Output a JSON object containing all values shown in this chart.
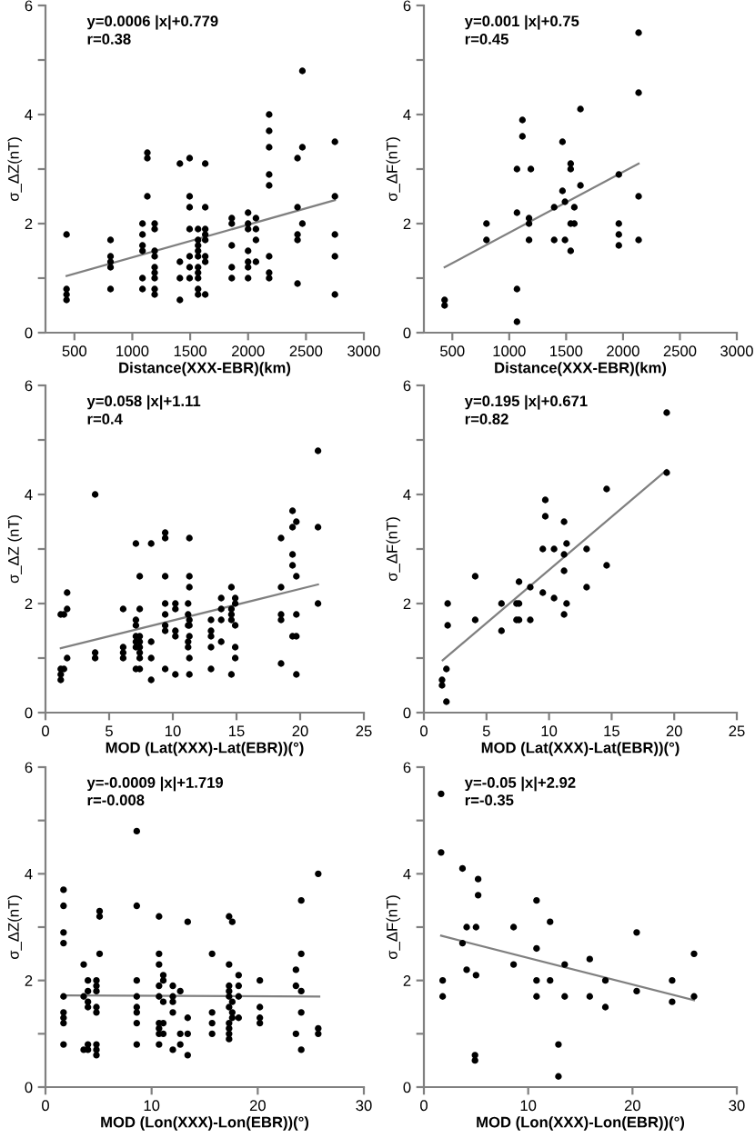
{
  "chart_data": [
    {
      "type": "scatter",
      "xlabel": "Distance(XXX-EBR)(km)",
      "ylabel": "σ_ΔZ(nT)",
      "annotations": [
        "y=0.0006 |x|+0.779",
        "r=0.38"
      ],
      "xlim": [
        250,
        3000
      ],
      "xticks": [
        500,
        1000,
        1500,
        2000,
        2500,
        3000
      ],
      "ylim": [
        0,
        6
      ],
      "yticks": [
        0,
        {
          "value": 1,
          "label": null
        },
        2,
        {
          "value": 3,
          "label": null
        },
        4,
        {
          "value": 5,
          "label": null
        },
        6
      ],
      "series": [
        {
          "marker": "circle",
          "color": "#000000",
          "x": [
            432,
            432,
            432,
            432,
            812,
            812,
            812,
            812,
            812,
            1088,
            1088,
            1088,
            1088,
            1088,
            1088,
            1130,
            1130,
            1130,
            1193,
            1193,
            1193,
            1193,
            1193,
            1193,
            1193,
            1193,
            1193,
            1411,
            1411,
            1411,
            1411,
            1495,
            1495,
            1495,
            1495,
            1495,
            1495,
            1495,
            1568,
            1568,
            1568,
            1568,
            1568,
            1568,
            1568,
            1568,
            1568,
            1568,
            1630,
            1630,
            1630,
            1630,
            1630,
            1630,
            1630,
            1630,
            1859,
            1859,
            1859,
            1859,
            1859,
            2000,
            2000,
            2000,
            2000,
            2000,
            2000,
            2000,
            2068,
            2068,
            2068,
            2068,
            2182,
            2182,
            2182,
            2182,
            2182,
            2182,
            2182,
            2182,
            2427,
            2427,
            2427,
            2427,
            2427,
            2469,
            2469,
            2469,
            2750,
            2750,
            2750,
            2750,
            2750
          ],
          "values": [
            1.8,
            0.8,
            0.7,
            0.6,
            1.7,
            1.4,
            1.3,
            1.2,
            0.8,
            2.0,
            1.8,
            1.6,
            1.5,
            1.0,
            0.8,
            3.3,
            3.2,
            2.5,
            2.0,
            1.9,
            1.5,
            1.4,
            1.2,
            1.1,
            1.0,
            0.8,
            0.7,
            3.1,
            1.3,
            1.0,
            0.6,
            3.2,
            2.5,
            2.3,
            1.9,
            1.4,
            1.2,
            1.0,
            1.9,
            1.7,
            1.6,
            1.5,
            1.4,
            1.2,
            1.1,
            1.0,
            0.8,
            0.7,
            3.1,
            2.3,
            1.9,
            1.8,
            1.7,
            1.4,
            1.3,
            0.7,
            2.1,
            2.0,
            1.6,
            1.2,
            1.0,
            2.2,
            2.0,
            1.9,
            1.5,
            1.3,
            1.2,
            1.0,
            2.1,
            1.9,
            1.7,
            1.3,
            4.0,
            3.7,
            3.4,
            2.9,
            2.7,
            1.4,
            1.1,
            1.0,
            3.2,
            2.3,
            1.8,
            1.7,
            0.9,
            4.8,
            3.4,
            2.0,
            3.5,
            2.5,
            1.8,
            1.4,
            0.7
          ]
        },
        {
          "type": "line",
          "color": "#808080",
          "x": [
            432,
            2750
          ],
          "values": [
            1.04,
            2.43
          ]
        }
      ]
    },
    {
      "type": "scatter",
      "xlabel": "Distance(XXX-EBR)(km)",
      "ylabel": "σ_ΔF(nT)",
      "annotations": [
        "y=0.001 |x|+0.75",
        "r=0.45"
      ],
      "xlim": [
        250,
        3000
      ],
      "xticks": [
        500,
        1000,
        1500,
        2000,
        2500,
        3000
      ],
      "ylim": [
        0,
        6
      ],
      "yticks": [
        0,
        {
          "value": 1,
          "label": null
        },
        2,
        {
          "value": 3,
          "label": null
        },
        4,
        {
          "value": 5,
          "label": null
        },
        6
      ],
      "series": [
        {
          "marker": "circle",
          "color": "#000000",
          "x": [
            432,
            432,
            800,
            800,
            1068,
            1068,
            1068,
            1068,
            1116,
            1116,
            1174,
            1174,
            1174,
            1190,
            1395,
            1395,
            1468,
            1468,
            1490,
            1490,
            1540,
            1540,
            1540,
            1540,
            1572,
            1572,
            1626,
            1626,
            1963,
            1963,
            1963,
            1963,
            2137,
            2137,
            2137,
            2137
          ],
          "values": [
            0.6,
            0.5,
            2.0,
            1.7,
            3.0,
            2.2,
            0.8,
            0.2,
            3.9,
            3.6,
            2.1,
            2.0,
            1.7,
            3.0,
            2.3,
            1.7,
            3.5,
            2.6,
            2.4,
            1.7,
            3.1,
            3.0,
            2.0,
            1.5,
            2.3,
            2.0,
            4.1,
            2.7,
            2.9,
            2.0,
            1.8,
            1.6,
            5.5,
            4.4,
            2.5,
            1.7
          ]
        },
        {
          "type": "line",
          "color": "#808080",
          "x": [
            432,
            2137
          ],
          "values": [
            1.2,
            3.1
          ]
        }
      ]
    },
    {
      "type": "scatter",
      "xlabel": "MOD (Lat(XXX)-Lat(EBR))(°)",
      "ylabel": "σ_ΔZ (nT)",
      "annotations": [
        "y=0.058 |x|+1.11",
        "r=0.4"
      ],
      "xlim": [
        0,
        25
      ],
      "xticks": [
        0,
        5,
        10,
        15,
        20,
        25
      ],
      "ylim": [
        0,
        6
      ],
      "yticks": [
        0,
        {
          "value": 1,
          "label": null
        },
        2,
        {
          "value": 3,
          "label": null
        },
        4,
        {
          "value": 5,
          "label": null
        },
        6
      ],
      "series": [
        {
          "marker": "circle",
          "color": "#000000",
          "x": [
            1.2,
            1.2,
            1.2,
            1.2,
            1.45,
            1.45,
            1.7,
            1.7,
            1.7,
            3.9,
            3.9,
            3.9,
            6.1,
            6.1,
            6.1,
            6.1,
            7.1,
            7.1,
            7.1,
            7.1,
            7.1,
            7.1,
            7.1,
            7.4,
            7.4,
            7.4,
            7.4,
            7.4,
            7.4,
            7.4,
            7.4,
            8.3,
            8.3,
            8.3,
            8.3,
            9.4,
            9.4,
            9.4,
            9.4,
            9.4,
            9.4,
            9.4,
            9.4,
            10.2,
            10.2,
            10.2,
            10.2,
            10.2,
            11.2,
            11.2,
            11.2,
            11.2,
            11.2,
            11.3,
            11.3,
            11.3,
            11.3,
            11.3,
            11.3,
            11.3,
            11.3,
            13.0,
            13.0,
            13.0,
            13.0,
            13.0,
            13.8,
            13.8,
            13.8,
            13.8,
            14.6,
            14.6,
            14.6,
            14.6,
            14.6,
            14.9,
            14.9,
            14.9,
            14.9,
            14.9,
            18.5,
            18.5,
            18.5,
            18.5,
            18.5,
            19.4,
            19.4,
            19.4,
            19.4,
            19.4,
            19.7,
            19.7,
            19.7,
            19.7,
            19.7,
            21.4,
            21.4,
            21.4
          ],
          "values": [
            1.8,
            0.8,
            0.7,
            0.6,
            1.8,
            0.8,
            2.2,
            1.9,
            1.0,
            4.0,
            1.1,
            1.0,
            1.9,
            1.2,
            1.1,
            1.0,
            3.1,
            1.7,
            1.6,
            1.4,
            1.3,
            1.2,
            0.8,
            2.5,
            1.9,
            1.4,
            1.3,
            1.2,
            1.1,
            1.0,
            0.8,
            3.1,
            1.3,
            1.0,
            0.6,
            3.3,
            3.2,
            2.5,
            2.0,
            1.8,
            1.6,
            1.5,
            0.8,
            2.0,
            1.9,
            1.5,
            1.4,
            0.7,
            2.0,
            1.8,
            1.6,
            1.3,
            1.2,
            3.2,
            2.5,
            2.3,
            1.7,
            1.6,
            1.4,
            1.0,
            0.7,
            1.7,
            1.5,
            1.4,
            1.2,
            0.8,
            2.1,
            1.9,
            1.7,
            1.3,
            2.3,
            1.9,
            1.8,
            1.7,
            0.7,
            2.1,
            2.0,
            1.6,
            1.2,
            1.0,
            3.2,
            2.3,
            1.8,
            1.7,
            0.9,
            3.7,
            3.4,
            2.9,
            2.7,
            1.4,
            3.5,
            2.5,
            1.8,
            1.4,
            0.7,
            4.8,
            3.4,
            2.0
          ]
        },
        {
          "type": "line",
          "color": "#808080",
          "x": [
            1.2,
            21.4
          ],
          "values": [
            1.18,
            2.35
          ]
        }
      ]
    },
    {
      "type": "scatter",
      "xlabel": "MOD (Lat(XXX)-Lat(EBR))(°)",
      "ylabel": "σ_ΔF(nT)",
      "annotations": [
        "y=0.195 |x|+0.671",
        "r=0.82"
      ],
      "xlim": [
        0,
        25
      ],
      "xticks": [
        0,
        5,
        10,
        15,
        20,
        25
      ],
      "ylim": [
        0,
        6
      ],
      "yticks": [
        0,
        {
          "value": 1,
          "label": null
        },
        2,
        {
          "value": 3,
          "label": null
        },
        4,
        {
          "value": 5,
          "label": null
        },
        6
      ],
      "series": [
        {
          "marker": "circle",
          "color": "#000000",
          "x": [
            1.45,
            1.45,
            1.8,
            1.8,
            1.9,
            1.9,
            4.1,
            4.1,
            6.2,
            6.2,
            7.4,
            7.4,
            7.6,
            7.6,
            7.6,
            8.5,
            8.5,
            9.5,
            9.5,
            9.7,
            9.7,
            10.4,
            10.4,
            11.2,
            11.2,
            11.2,
            11.2,
            11.4,
            11.4,
            13.0,
            13.0,
            14.6,
            14.6,
            19.4,
            19.4
          ],
          "values": [
            0.6,
            0.5,
            0.8,
            0.2,
            2.0,
            1.6,
            2.5,
            1.7,
            2.0,
            1.5,
            2.0,
            1.7,
            2.4,
            2.0,
            1.7,
            2.3,
            1.7,
            3.0,
            2.2,
            3.9,
            3.6,
            3.0,
            2.1,
            3.5,
            2.9,
            2.6,
            1.8,
            3.1,
            2.0,
            3.0,
            2.3,
            4.1,
            2.7,
            5.5,
            4.4
          ]
        },
        {
          "type": "line",
          "color": "#808080",
          "x": [
            1.5,
            19.4
          ],
          "values": [
            0.96,
            4.45
          ]
        }
      ]
    },
    {
      "type": "scatter",
      "xlabel": "MOD (Lon(XXX)-Lon(EBR))(°)",
      "ylabel": "σ_ΔZ(nT)",
      "annotations": [
        "y=-0.0009 |x|+1.719",
        "r=-0.008"
      ],
      "xlim": [
        0,
        30
      ],
      "xticks": [
        0,
        10,
        20,
        30
      ],
      "ylim": [
        0,
        6
      ],
      "yticks": [
        0,
        {
          "value": 1,
          "label": null
        },
        2,
        {
          "value": 3,
          "label": null
        },
        4,
        {
          "value": 5,
          "label": null
        },
        6
      ],
      "series": [
        {
          "marker": "circle",
          "color": "#000000",
          "x": [
            1.7,
            1.7,
            1.7,
            1.7,
            1.7,
            1.7,
            1.7,
            1.7,
            1.7,
            3.6,
            3.6,
            3.6,
            4.0,
            4.0,
            4.0,
            4.0,
            4.0,
            4.0,
            4.8,
            4.8,
            4.8,
            4.8,
            4.8,
            4.8,
            4.8,
            4.8,
            5.1,
            5.1,
            5.1,
            8.6,
            8.6,
            8.6,
            8.6,
            8.6,
            8.6,
            8.6,
            8.6,
            10.7,
            10.7,
            10.7,
            10.7,
            10.7,
            10.7,
            10.7,
            10.7,
            10.7,
            11.1,
            11.1,
            11.1,
            11.1,
            11.1,
            12.0,
            12.0,
            12.0,
            12.0,
            12.0,
            12.7,
            12.7,
            12.7,
            13.4,
            13.4,
            13.4,
            13.4,
            15.7,
            15.7,
            15.7,
            15.7,
            17.3,
            17.3,
            17.3,
            17.3,
            17.3,
            17.3,
            17.3,
            17.3,
            17.3,
            17.3,
            17.6,
            17.6,
            17.6,
            17.6,
            18.2,
            18.2,
            18.2,
            18.2,
            20.2,
            20.2,
            20.2,
            20.2,
            23.6,
            23.6,
            23.6,
            24.1,
            24.1,
            24.1,
            24.1,
            24.1,
            25.7,
            25.7,
            25.7
          ],
          "values": [
            3.7,
            3.4,
            2.9,
            2.7,
            1.7,
            1.4,
            1.3,
            1.2,
            0.8,
            2.3,
            1.7,
            0.7,
            2.0,
            1.8,
            1.6,
            1.5,
            0.8,
            0.7,
            2.0,
            1.9,
            1.8,
            1.5,
            1.4,
            0.8,
            0.7,
            0.6,
            3.3,
            3.2,
            2.5,
            4.8,
            3.4,
            2.0,
            1.7,
            1.5,
            1.4,
            1.2,
            0.8,
            3.2,
            2.5,
            2.3,
            1.9,
            1.7,
            1.2,
            1.1,
            1.0,
            0.8,
            2.1,
            2.0,
            1.6,
            1.2,
            1.0,
            1.9,
            1.7,
            1.6,
            1.4,
            0.7,
            1.8,
            1.0,
            0.8,
            3.1,
            1.3,
            1.0,
            0.6,
            2.5,
            1.4,
            1.2,
            1.0,
            3.2,
            2.3,
            1.9,
            1.8,
            1.7,
            1.5,
            1.2,
            1.1,
            1.0,
            0.9,
            3.1,
            1.6,
            1.4,
            1.3,
            2.1,
            1.9,
            1.7,
            1.3,
            2.0,
            1.5,
            1.3,
            1.2,
            2.2,
            1.9,
            1.0,
            3.5,
            2.5,
            1.8,
            1.4,
            0.7,
            4.0,
            1.1,
            1.0
          ]
        },
        {
          "type": "line",
          "color": "#808080",
          "x": [
            1.7,
            25.8
          ],
          "values": [
            1.72,
            1.7
          ]
        }
      ]
    },
    {
      "type": "scatter",
      "xlabel": "MOD (Lon(XXX)-Lon(EBR))(°)",
      "ylabel": "σ_ΔF(nT)",
      "annotations": [
        "y=-0.05 |x|+2.92",
        "r=-0.35"
      ],
      "xlim": [
        0,
        30
      ],
      "xticks": [
        0,
        10,
        20,
        30
      ],
      "ylim": [
        0,
        6
      ],
      "yticks": [
        0,
        {
          "value": 1,
          "label": null
        },
        2,
        {
          "value": 3,
          "label": null
        },
        4,
        {
          "value": 5,
          "label": null
        },
        6
      ],
      "series": [
        {
          "marker": "circle",
          "color": "#000000",
          "x": [
            1.65,
            1.65,
            1.8,
            1.8,
            3.7,
            3.7,
            4.1,
            4.1,
            4.9,
            4.9,
            5.0,
            5.0,
            5.2,
            5.2,
            8.6,
            8.6,
            10.8,
            10.8,
            10.8,
            10.8,
            12.1,
            12.1,
            12.9,
            12.9,
            13.5,
            13.5,
            15.9,
            15.9,
            17.4,
            17.4,
            20.4,
            20.4,
            23.8,
            23.8,
            25.9,
            25.9
          ],
          "values": [
            5.5,
            4.4,
            2.0,
            1.7,
            4.1,
            2.7,
            3.0,
            2.2,
            0.6,
            0.5,
            3.0,
            2.1,
            3.9,
            3.6,
            3.0,
            2.3,
            3.5,
            2.6,
            2.0,
            1.7,
            3.1,
            2.0,
            0.8,
            0.2,
            2.3,
            1.7,
            2.4,
            1.7,
            2.0,
            1.5,
            2.9,
            1.8,
            2.0,
            1.6,
            2.5,
            1.7
          ]
        },
        {
          "type": "line",
          "color": "#808080",
          "x": [
            1.65,
            25.9
          ],
          "values": [
            2.84,
            1.63
          ]
        }
      ]
    }
  ]
}
